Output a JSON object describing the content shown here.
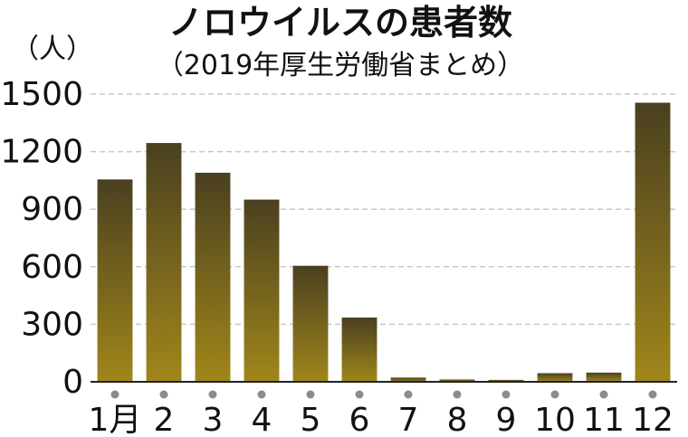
{
  "chart_data": {
    "type": "bar",
    "title": "ノロウイルスの患者数",
    "subtitle": "（2019年厚生労働省まとめ）",
    "ylabel": "（人）",
    "xlabel": "",
    "categories": [
      "1月",
      "2",
      "3",
      "4",
      "5",
      "6",
      "7",
      "8",
      "9",
      "10",
      "11",
      "12"
    ],
    "values": [
      1055,
      1245,
      1090,
      950,
      605,
      335,
      22,
      12,
      10,
      45,
      48,
      1455
    ],
    "ylim": [
      0,
      1500
    ],
    "yticks": [
      "0",
      "300",
      "600",
      "900",
      "1200",
      "1500"
    ],
    "grid": true,
    "legend": "none",
    "colors": {
      "bar_top": "#4a4020",
      "bar_bottom": "#a0861a",
      "grid": "#c8c8c8",
      "dot": "#8c8c8c",
      "axis": "#222222"
    }
  }
}
